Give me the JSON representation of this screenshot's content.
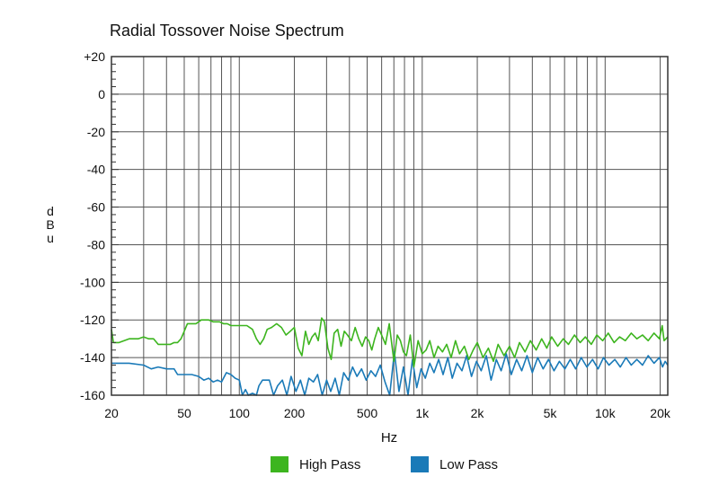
{
  "chart_data": {
    "type": "line",
    "title": "Radial Tossover Noise Spectrum",
    "xlabel": "Hz",
    "ylabel": "dBu",
    "x_scale": "log",
    "xlim": [
      20,
      22000
    ],
    "ylim": [
      -160,
      20
    ],
    "x_ticks": [
      {
        "value": 20,
        "label": "20"
      },
      {
        "value": 50,
        "label": "50"
      },
      {
        "value": 100,
        "label": "100"
      },
      {
        "value": 200,
        "label": "200"
      },
      {
        "value": 500,
        "label": "500"
      },
      {
        "value": 1000,
        "label": "1k"
      },
      {
        "value": 2000,
        "label": "2k"
      },
      {
        "value": 5000,
        "label": "5k"
      },
      {
        "value": 10000,
        "label": "10k"
      },
      {
        "value": 20000,
        "label": "20k"
      }
    ],
    "y_ticks": [
      {
        "value": 20,
        "label": "+20"
      },
      {
        "value": 0,
        "label": "0"
      },
      {
        "value": -20,
        "label": "-20"
      },
      {
        "value": -40,
        "label": "-40"
      },
      {
        "value": -60,
        "label": "-60"
      },
      {
        "value": -80,
        "label": "-80"
      },
      {
        "value": -100,
        "label": "-100"
      },
      {
        "value": -120,
        "label": "-120"
      },
      {
        "value": -140,
        "label": "-140"
      },
      {
        "value": -160,
        "label": "-160"
      }
    ],
    "grid": true,
    "legend_position": "bottom-center",
    "series": [
      {
        "name": "High Pass",
        "color": "#3db51f",
        "points": [
          [
            20,
            -125
          ],
          [
            20.5,
            -132
          ],
          [
            22,
            -132
          ],
          [
            25,
            -130
          ],
          [
            28,
            -130
          ],
          [
            30,
            -129
          ],
          [
            32,
            -130
          ],
          [
            34,
            -130
          ],
          [
            36,
            -133
          ],
          [
            38,
            -133
          ],
          [
            42,
            -133
          ],
          [
            44,
            -132
          ],
          [
            46,
            -132
          ],
          [
            48,
            -130
          ],
          [
            50,
            -126
          ],
          [
            52,
            -122
          ],
          [
            58,
            -122
          ],
          [
            62,
            -120
          ],
          [
            68,
            -120
          ],
          [
            72,
            -121
          ],
          [
            78,
            -121
          ],
          [
            82,
            -122
          ],
          [
            86,
            -122
          ],
          [
            90,
            -123
          ],
          [
            100,
            -123
          ],
          [
            110,
            -123
          ],
          [
            118,
            -125
          ],
          [
            124,
            -130
          ],
          [
            130,
            -133
          ],
          [
            136,
            -130
          ],
          [
            142,
            -125
          ],
          [
            150,
            -124
          ],
          [
            160,
            -122
          ],
          [
            170,
            -124
          ],
          [
            180,
            -128
          ],
          [
            190,
            -126
          ],
          [
            200,
            -124
          ],
          [
            210,
            -135
          ],
          [
            220,
            -139
          ],
          [
            230,
            -126
          ],
          [
            240,
            -133
          ],
          [
            250,
            -129
          ],
          [
            260,
            -127
          ],
          [
            270,
            -131
          ],
          [
            282,
            -119
          ],
          [
            292,
            -121
          ],
          [
            305,
            -135
          ],
          [
            318,
            -141
          ],
          [
            330,
            -127
          ],
          [
            345,
            -125
          ],
          [
            360,
            -134
          ],
          [
            375,
            -126
          ],
          [
            390,
            -128
          ],
          [
            410,
            -131
          ],
          [
            430,
            -124
          ],
          [
            450,
            -130
          ],
          [
            470,
            -134
          ],
          [
            490,
            -129
          ],
          [
            510,
            -131
          ],
          [
            530,
            -136
          ],
          [
            550,
            -130
          ],
          [
            575,
            -124
          ],
          [
            600,
            -128
          ],
          [
            630,
            -133
          ],
          [
            660,
            -122
          ],
          [
            700,
            -142
          ],
          [
            730,
            -128
          ],
          [
            760,
            -131
          ],
          [
            790,
            -137
          ],
          [
            820,
            -139
          ],
          [
            860,
            -128
          ],
          [
            900,
            -145
          ],
          [
            950,
            -131
          ],
          [
            1000,
            -138
          ],
          [
            1050,
            -136
          ],
          [
            1100,
            -131
          ],
          [
            1160,
            -140
          ],
          [
            1220,
            -134
          ],
          [
            1290,
            -137
          ],
          [
            1360,
            -133
          ],
          [
            1440,
            -140
          ],
          [
            1520,
            -131
          ],
          [
            1600,
            -138
          ],
          [
            1700,
            -134
          ],
          [
            1800,
            -141
          ],
          [
            1900,
            -136
          ],
          [
            2000,
            -132
          ],
          [
            2150,
            -140
          ],
          [
            2300,
            -135
          ],
          [
            2450,
            -142
          ],
          [
            2600,
            -133
          ],
          [
            2800,
            -139
          ],
          [
            3000,
            -134
          ],
          [
            3200,
            -140
          ],
          [
            3400,
            -132
          ],
          [
            3650,
            -137
          ],
          [
            3900,
            -131
          ],
          [
            4200,
            -136
          ],
          [
            4500,
            -130
          ],
          [
            4800,
            -135
          ],
          [
            5100,
            -129
          ],
          [
            5500,
            -134
          ],
          [
            5900,
            -130
          ],
          [
            6300,
            -133
          ],
          [
            6800,
            -128
          ],
          [
            7300,
            -132
          ],
          [
            7800,
            -129
          ],
          [
            8400,
            -133
          ],
          [
            9000,
            -128
          ],
          [
            9700,
            -131
          ],
          [
            10400,
            -127
          ],
          [
            11200,
            -132
          ],
          [
            12000,
            -129
          ],
          [
            12900,
            -131
          ],
          [
            13900,
            -127
          ],
          [
            14900,
            -130
          ],
          [
            16000,
            -128
          ],
          [
            17200,
            -131
          ],
          [
            18500,
            -127
          ],
          [
            19800,
            -130
          ],
          [
            20500,
            -123
          ],
          [
            21000,
            -131
          ],
          [
            22000,
            -129
          ]
        ]
      },
      {
        "name": "Low Pass",
        "color": "#1a7ab8",
        "points": [
          [
            20,
            -143
          ],
          [
            25,
            -143
          ],
          [
            30,
            -144
          ],
          [
            33,
            -146
          ],
          [
            36,
            -145
          ],
          [
            40,
            -146
          ],
          [
            44,
            -146
          ],
          [
            46,
            -149
          ],
          [
            50,
            -149
          ],
          [
            55,
            -149
          ],
          [
            60,
            -150
          ],
          [
            64,
            -152
          ],
          [
            68,
            -151
          ],
          [
            72,
            -153
          ],
          [
            76,
            -152
          ],
          [
            80,
            -153
          ],
          [
            85,
            -148
          ],
          [
            90,
            -149
          ],
          [
            95,
            -151
          ],
          [
            100,
            -152
          ],
          [
            104,
            -160
          ],
          [
            108,
            -157
          ],
          [
            112,
            -160
          ],
          [
            118,
            -159
          ],
          [
            124,
            -160
          ],
          [
            128,
            -155
          ],
          [
            134,
            -152
          ],
          [
            140,
            -152
          ],
          [
            146,
            -152
          ],
          [
            154,
            -160
          ],
          [
            162,
            -155
          ],
          [
            172,
            -152
          ],
          [
            182,
            -160
          ],
          [
            192,
            -150
          ],
          [
            204,
            -158
          ],
          [
            216,
            -152
          ],
          [
            228,
            -160
          ],
          [
            240,
            -151
          ],
          [
            254,
            -153
          ],
          [
            268,
            -149
          ],
          [
            284,
            -160
          ],
          [
            300,
            -152
          ],
          [
            316,
            -158
          ],
          [
            334,
            -151
          ],
          [
            352,
            -160
          ],
          [
            372,
            -148
          ],
          [
            394,
            -152
          ],
          [
            416,
            -145
          ],
          [
            440,
            -150
          ],
          [
            466,
            -146
          ],
          [
            494,
            -152
          ],
          [
            524,
            -147
          ],
          [
            556,
            -150
          ],
          [
            590,
            -144
          ],
          [
            626,
            -153
          ],
          [
            664,
            -160
          ],
          [
            704,
            -137
          ],
          [
            746,
            -158
          ],
          [
            790,
            -145
          ],
          [
            836,
            -160
          ],
          [
            884,
            -141
          ],
          [
            934,
            -156
          ],
          [
            986,
            -146
          ],
          [
            1040,
            -151
          ],
          [
            1100,
            -143
          ],
          [
            1160,
            -148
          ],
          [
            1230,
            -141
          ],
          [
            1300,
            -149
          ],
          [
            1380,
            -140
          ],
          [
            1460,
            -151
          ],
          [
            1550,
            -143
          ],
          [
            1650,
            -147
          ],
          [
            1750,
            -139
          ],
          [
            1860,
            -150
          ],
          [
            1980,
            -142
          ],
          [
            2100,
            -147
          ],
          [
            2240,
            -139
          ],
          [
            2380,
            -152
          ],
          [
            2540,
            -141
          ],
          [
            2700,
            -147
          ],
          [
            2880,
            -138
          ],
          [
            3070,
            -149
          ],
          [
            3280,
            -141
          ],
          [
            3500,
            -147
          ],
          [
            3740,
            -139
          ],
          [
            4000,
            -148
          ],
          [
            4280,
            -140
          ],
          [
            4580,
            -146
          ],
          [
            4900,
            -141
          ],
          [
            5250,
            -147
          ],
          [
            5620,
            -142
          ],
          [
            6020,
            -146
          ],
          [
            6450,
            -141
          ],
          [
            6900,
            -146
          ],
          [
            7400,
            -140
          ],
          [
            7950,
            -145
          ],
          [
            8530,
            -141
          ],
          [
            9150,
            -146
          ],
          [
            9800,
            -140
          ],
          [
            10500,
            -144
          ],
          [
            11300,
            -141
          ],
          [
            12100,
            -145
          ],
          [
            13000,
            -140
          ],
          [
            13900,
            -144
          ],
          [
            14900,
            -141
          ],
          [
            16000,
            -144
          ],
          [
            17200,
            -139
          ],
          [
            18500,
            -143
          ],
          [
            19800,
            -140
          ],
          [
            20600,
            -145
          ],
          [
            21300,
            -142
          ],
          [
            22000,
            -144
          ]
        ]
      }
    ]
  }
}
